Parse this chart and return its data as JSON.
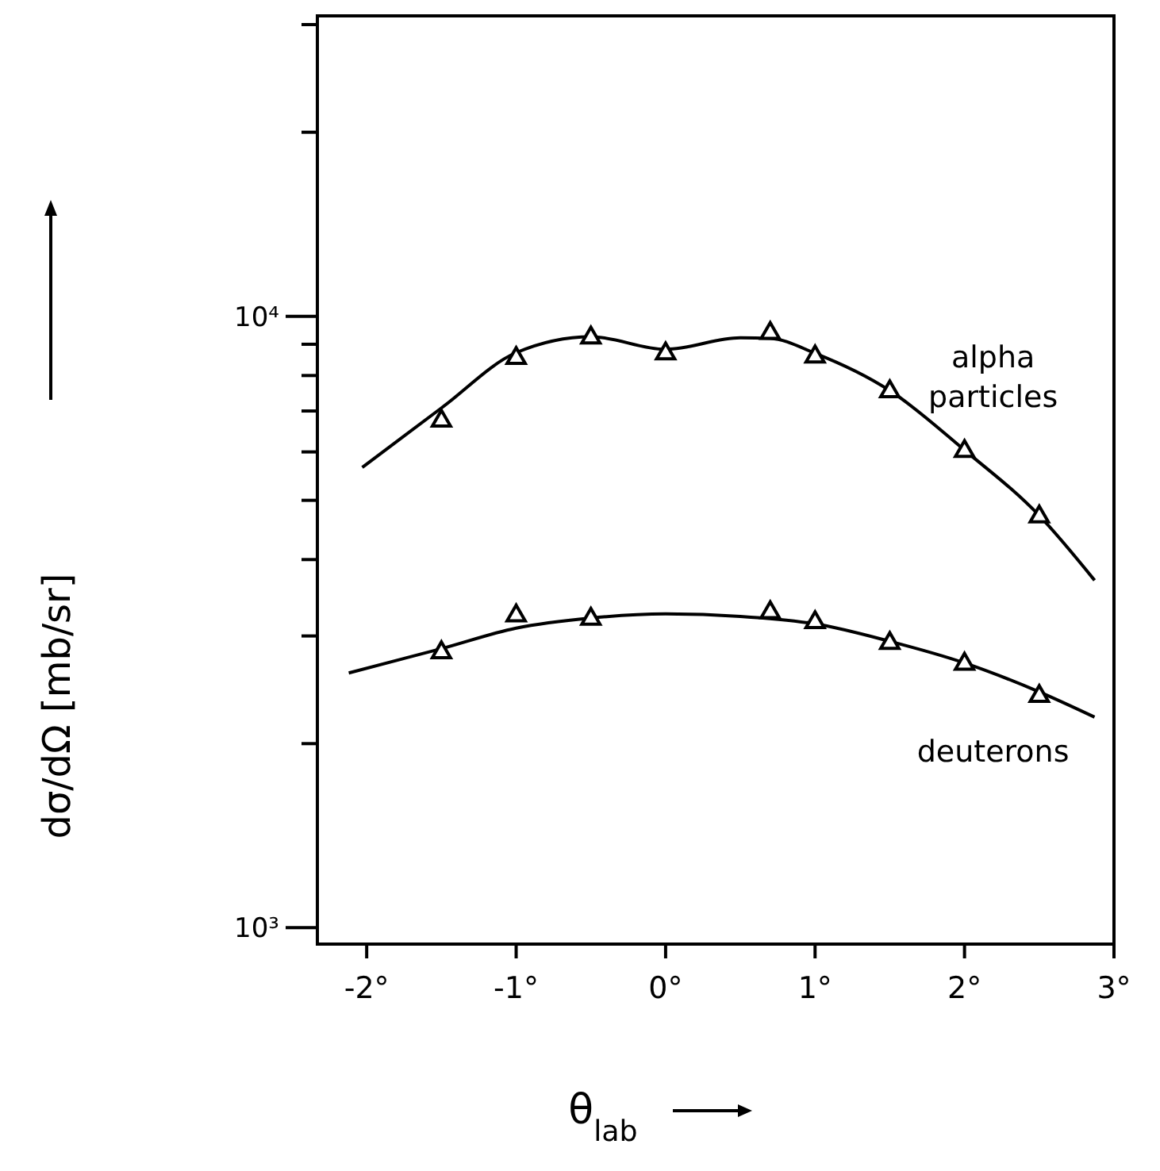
{
  "chart_data": {
    "type": "line",
    "xlabel": "θ$_{lab}$",
    "ylabel": "dσ/dΩ  [mb/sr]",
    "xlim": [
      -2.33,
      3
    ],
    "xticks": [
      {
        "value": -2,
        "label": "-2°"
      },
      {
        "value": -1,
        "label": "-1°"
      },
      {
        "value": 0,
        "label": "0°"
      },
      {
        "value": 1,
        "label": "1°"
      },
      {
        "value": 2,
        "label": "2°"
      },
      {
        "value": 3,
        "label": "3°"
      }
    ],
    "ylim": [
      940,
      31000
    ],
    "yticks": [
      {
        "value": 1000,
        "label": "10³"
      },
      {
        "value": 2000,
        "label": null
      },
      {
        "value": 3000,
        "label": null
      },
      {
        "value": 4000,
        "label": null
      },
      {
        "value": 5000,
        "label": null
      },
      {
        "value": 6000,
        "label": null
      },
      {
        "value": 7000,
        "label": null
      },
      {
        "value": 8000,
        "label": null
      },
      {
        "value": 9000,
        "label": null
      },
      {
        "value": 10000,
        "label": "10⁴"
      },
      {
        "value": 20000,
        "label": null
      },
      {
        "value": 30000,
        "label": null
      }
    ],
    "log": "y",
    "grid": false,
    "legend": false,
    "marker": "triangle",
    "line_style": "solid",
    "series": [
      {
        "marker": "none",
        "color": "#000000",
        "x": [
          -2.03,
          -1.5,
          -1.0,
          -0.5,
          0.0,
          0.5,
          0.7,
          1.0,
          1.5,
          2.0,
          2.5,
          2.87
        ],
        "values": [
          5660,
          7080,
          8720,
          9260,
          8830,
          9220,
          9200,
          8700,
          7560,
          6040,
          4720,
          3700
        ]
      },
      {
        "type": "scatter",
        "name": "alpha particles",
        "color": "#000000",
        "x": [
          -1.5,
          -1.0,
          -0.5,
          0.0,
          0.7,
          1.0,
          1.5,
          2.0,
          2.5
        ],
        "values": [
          6770,
          8570,
          9260,
          8720,
          9420,
          8620,
          7560,
          6040,
          4720
        ]
      },
      {
        "marker": "none",
        "color": "#000000",
        "x": [
          -2.12,
          -1.5,
          -1.0,
          -0.5,
          0.0,
          0.5,
          1.0,
          1.5,
          2.0,
          2.5,
          2.87
        ],
        "values": [
          2610,
          2860,
          3090,
          3210,
          3260,
          3230,
          3140,
          2940,
          2710,
          2430,
          2210
        ]
      },
      {
        "type": "scatter",
        "name": "deuterons",
        "color": "#000000",
        "x": [
          -1.5,
          -1.0,
          -0.5,
          0.7,
          1.0,
          1.5,
          2.0,
          2.5
        ],
        "values": [
          2830,
          3250,
          3210,
          3290,
          3170,
          2930,
          2710,
          2400
        ]
      }
    ]
  }
}
